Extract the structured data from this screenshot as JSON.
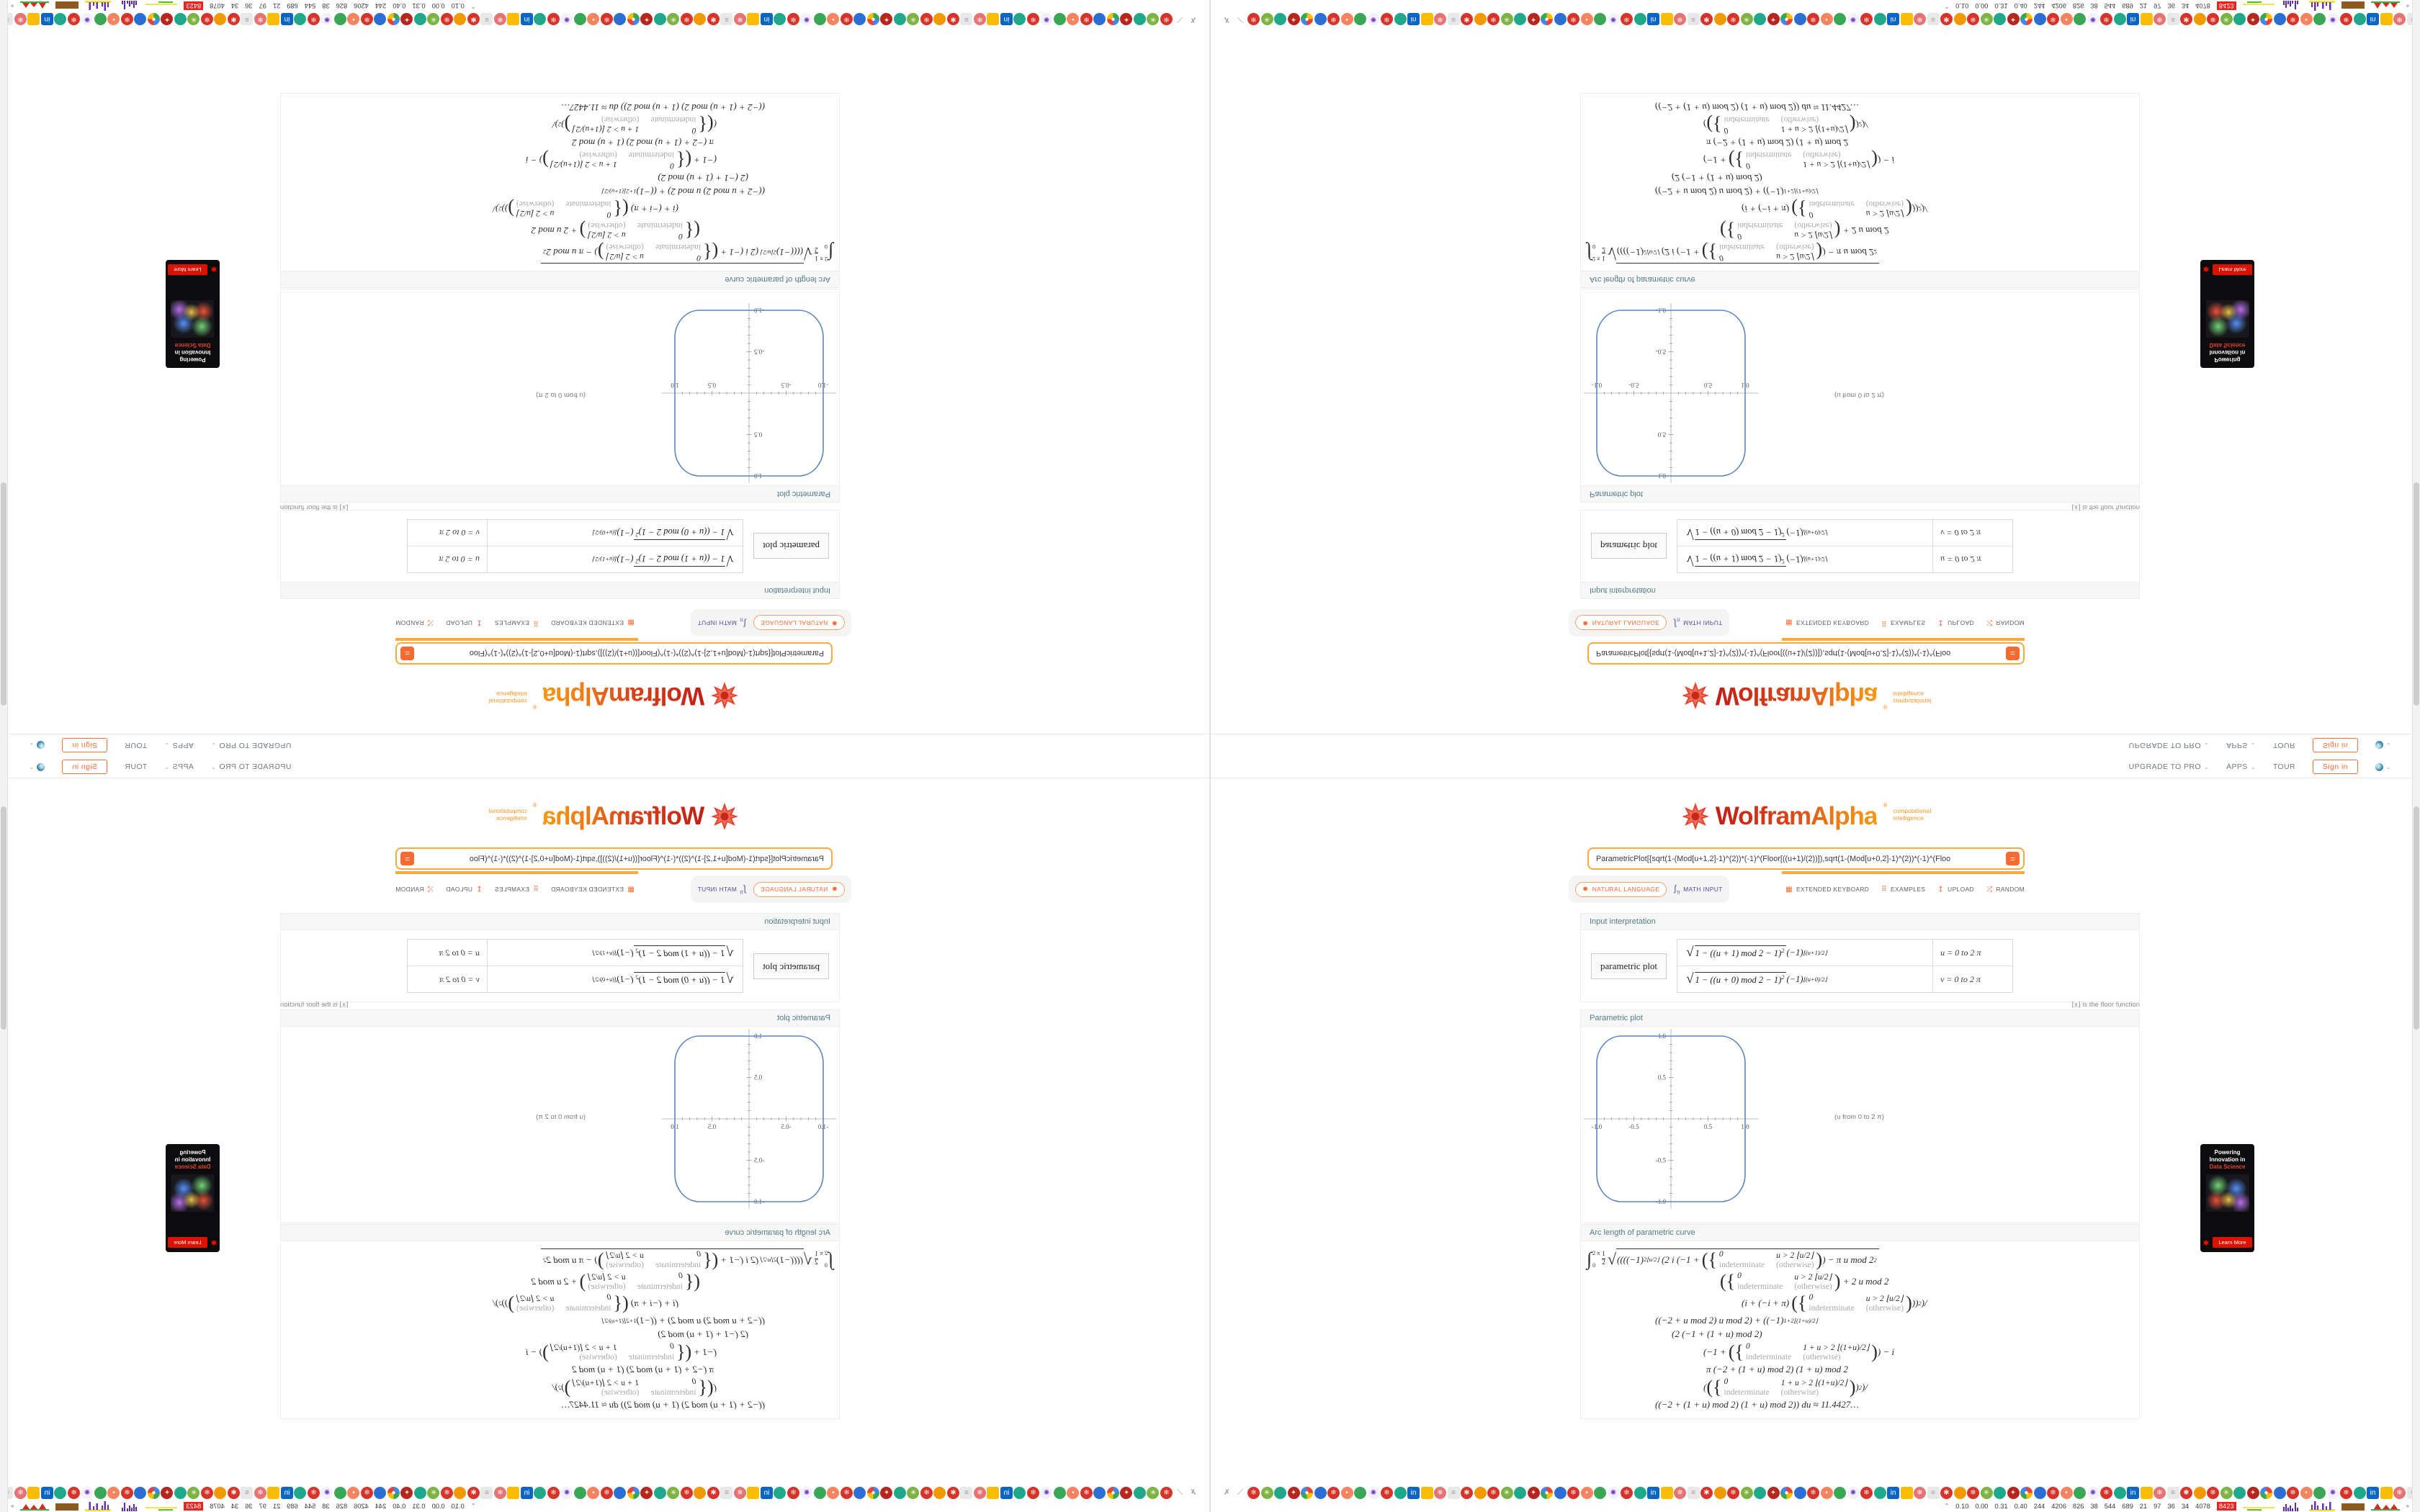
{
  "header": {
    "items": [
      {
        "label": "UPGRADE TO PRO",
        "chevron": true
      },
      {
        "label": "APPS",
        "chevron": true
      },
      {
        "label": "TOUR",
        "chevron": false
      }
    ],
    "sign_in": "Sign in"
  },
  "logo": {
    "wordmark": "WolframAlpha",
    "registered": "®",
    "tagline_line1": "computational",
    "tagline_line2": "intelligence."
  },
  "search": {
    "value": "ParametricPlot[{sqrt(1-(Mod[u+1,2]-1)^(2))*(-1)^(Floor[((u+1)/(2))]),sqrt(1-(Mod[u+0,2]-1)^(2))*(-1)^(Floo",
    "equals_label": "="
  },
  "modes": {
    "natural_language": "NATURAL LANGUAGE",
    "math_input": "MATH INPUT",
    "extended_keyboard": "EXTENDED KEYBOARD",
    "examples": "EXAMPLES",
    "upload": "UPLOAD",
    "random": "RANDOM"
  },
  "pods": {
    "input_interpretation": {
      "title": "Input interpretation",
      "label": "parametric plot",
      "rows": [
        {
          "radicand": "1 − ((u + 1) mod 2 − 1)",
          "rad_sup": "2",
          "factor": " (−1)",
          "factor_sup": "⌊(u+1)/2⌋",
          "range": "u = 0 to 2 π"
        },
        {
          "radicand": "1 − ((u + 0) mod 2 − 1)",
          "rad_sup": "2",
          "factor": " (−1)",
          "factor_sup": "⌊(u+0)/2⌋",
          "range": "v = 0 to 2 π"
        }
      ],
      "footnote": "⌊x⌋ is the floor function"
    },
    "parametric_plot": {
      "title": "Parametric plot",
      "xlabel": "(u from 0 to 2 π)",
      "x_ticks": [
        "-1.0",
        "-0.5",
        "0.5",
        "1.0"
      ],
      "y_ticks": [
        "1.0",
        "0.5",
        "-0.5",
        "-1.0"
      ],
      "curve_color": "#5e86c0"
    },
    "arc_length": {
      "title": "Arc length of parametric curve",
      "integral": {
        "symbol": "∫",
        "lower": "0",
        "upper": "2 π",
        "frac_top": "1",
        "frac_bot": "2",
        "sqrt": "√"
      },
      "pw": {
        "u": [
          [
            "0",
            "u > 2 ⌊u/2⌋"
          ],
          [
            "indeterminate",
            "(otherwise)"
          ]
        ],
        "u1": [
          [
            "0",
            "1 + u > 2 ⌊(1+u)/2⌋"
          ],
          [
            "indeterminate",
            "(otherwise)"
          ]
        ]
      },
      "brace": "{",
      "paren_open": "(",
      "paren_close": ")",
      "lines": [
        {
          "indent": 0,
          "prefix": true,
          "segs": [
            {
              "t": "((("
            },
            {
              "t": "(−1)"
            },
            {
              "s": "2⌊u/2⌋"
            },
            {
              "t": " (2 i (−1 + "
            },
            {
              "p": "u"
            },
            {
              "t": ") − π u mod 2"
            },
            {
              "s": "2"
            }
          ]
        },
        {
          "indent": 185,
          "segs": [
            {
              "p": "u"
            },
            {
              "t": " + 2 u mod 2"
            }
          ]
        },
        {
          "indent": 215,
          "segs": [
            {
              "t": "(i + (−i + π) "
            },
            {
              "p": "u"
            },
            {
              "t": "))"
            },
            {
              "s": "2"
            },
            {
              "t": ")/"
            }
          ]
        },
        {
          "indent": 95,
          "segs": [
            {
              "t": "((−2 + u mod 2) u mod 2) + ((−1)"
            },
            {
              "s": "1+2⌊(1+u)/2⌋"
            }
          ]
        },
        {
          "indent": 118,
          "segs": [
            {
              "t": "(2 (−1 + (1 + u) mod 2)"
            }
          ]
        },
        {
          "indent": 162,
          "segs": [
            {
              "t": "(−1 + "
            },
            {
              "p": "u1"
            },
            {
              "t": ") − i"
            }
          ]
        },
        {
          "indent": 166,
          "segs": [
            {
              "t": "π (−2 + (1 + u) mod 2) (1 + u) mod 2"
            }
          ]
        },
        {
          "indent": 162,
          "segs": [
            {
              "t": "("
            },
            {
              "p": "u1"
            },
            {
              "t": ")"
            },
            {
              "s": "2"
            },
            {
              "t": ")/"
            }
          ]
        },
        {
          "indent": 95,
          "segs": [
            {
              "t": "((−2 + (1 + u) mod 2) (1 + u) mod 2)) "
            },
            {
              "t": "du ≈ 11.4427…"
            }
          ]
        }
      ]
    }
  },
  "ad": {
    "line1": "Powering",
    "line2": "Innovation in",
    "line3": "Data Science",
    "cta": "Learn More"
  },
  "taskbar": {
    "icon_cycle": [
      {
        "name": "ornament-red-icon",
        "bg": "#d6342a",
        "glyph": "❄",
        "fg": "#ffe9e2"
      },
      {
        "name": "ball-lime-icon",
        "bg": "#7cb342",
        "glyph": "✳",
        "fg": "#ffffff"
      },
      {
        "name": "circle-teal-icon",
        "bg": "#1fa88a",
        "glyph": "",
        "fg": "#ffffff"
      },
      {
        "name": "ornament-crimson-icon",
        "bg": "#b5261e",
        "glyph": "✦",
        "fg": "#ffd9d0"
      },
      {
        "name": "chrome-icon",
        "bg": "conic-gradient(#ea4335 0 25%,#fbbc04 25% 50%,#34a853 50% 75%,#4285f4 75% 100%)",
        "glyph": "●",
        "fg": "#ffffff"
      },
      {
        "name": "circle-blue-icon",
        "bg": "#2b6fd4",
        "glyph": "",
        "fg": "#ffffff"
      },
      {
        "name": "ornament-red-icon",
        "bg": "#d6342a",
        "glyph": "❄",
        "fg": "#ffe9e2"
      },
      {
        "name": "ball-coral-icon",
        "bg": "#f4845f",
        "glyph": "•",
        "fg": "#ffffff"
      },
      {
        "name": "circle-green-icon",
        "bg": "#3aa757",
        "glyph": "",
        "fg": "#ffffff"
      },
      {
        "name": "fireworks-purple-icon",
        "bg": "#f3efff",
        "glyph": "✺",
        "fg": "#6a3fb5"
      },
      {
        "name": "ornament-red-icon",
        "bg": "#d6342a",
        "glyph": "❄",
        "fg": "#ffe9e2"
      },
      {
        "name": "circle-teal-icon",
        "bg": "#1fa88a",
        "glyph": "",
        "fg": "#ffffff"
      },
      {
        "name": "linkedin-icon",
        "bg": "#0a66c2",
        "glyph": "in",
        "fg": "#ffffff",
        "square": true
      },
      {
        "name": "folder-yellow-icon",
        "bg": "#fbbc04",
        "glyph": "",
        "fg": "#ffffff",
        "square": true
      },
      {
        "name": "ornament-pink-icon",
        "bg": "#e57373",
        "glyph": "❄",
        "fg": "#fff1f0"
      },
      {
        "name": "doc-grey-icon",
        "bg": "#e8e8e8",
        "glyph": "≡",
        "fg": "#9a9a9a",
        "square": true
      },
      {
        "name": "ornament-red-icon",
        "bg": "#d6342a",
        "glyph": "✱",
        "fg": "#ffe9e2"
      },
      {
        "name": "circle-orange-icon",
        "bg": "#f29900",
        "glyph": "",
        "fg": "#ffffff"
      }
    ],
    "icon_repeat": 5,
    "leading_glyphs": [
      "✗",
      "⟋"
    ],
    "trailing_glyph": "»"
  },
  "statusbar": {
    "collapse_chevron": "⌃",
    "numbers": [
      "0.10",
      "0.00",
      "0.31",
      "0.40",
      "244",
      "4206",
      "826",
      "38",
      "544",
      "689",
      "21",
      "97",
      "36",
      "34",
      "4078"
    ],
    "badge": "8423"
  },
  "chart_data": {
    "type": "line",
    "title": "Parametric plot",
    "xlabel": "(u from 0 to 2 π)",
    "x_ticks": [
      -1.0,
      -0.5,
      0.5,
      1.0
    ],
    "y_ticks": [
      1.0,
      0.5,
      -0.5,
      -1.0
    ],
    "xlim": [
      -1.1,
      1.1
    ],
    "ylim": [
      -1.1,
      1.1
    ],
    "series": [
      {
        "name": "parametric curve x=sqrt(1-((u+1) mod 2 -1)^2)(-1)^floor((u+1)/2), y=sqrt(1-((u+0) mod 2 -1)^2)(-1)^floor(u/2)",
        "shape": "rounded square through (±1,0),(0,±1)",
        "color": "#5e86c0"
      }
    ],
    "arc_length_result": 11.4427
  }
}
